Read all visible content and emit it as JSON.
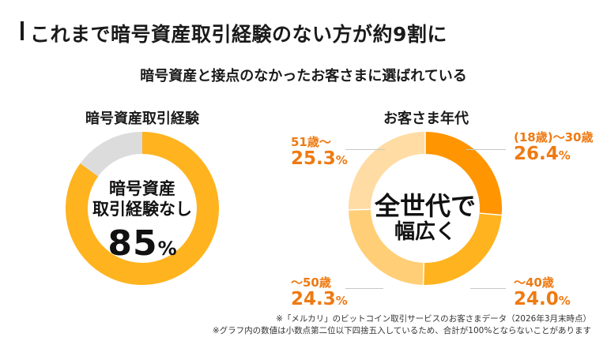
{
  "page": {
    "title": "これまで暗号資産取引経験のない方が約9割に",
    "subtitle": "暗号資産と接点のなかったお客さまに選ばれている"
  },
  "chart_data": [
    {
      "type": "pie",
      "title": "暗号資産取引経験",
      "center_label_line1": "暗号資産",
      "center_label_line2": "取引経験なし",
      "center_value": "85",
      "center_unit": "%",
      "slices": [
        {
          "label": "暗号資産取引経験なし",
          "value": 85,
          "color": "#ffb31f"
        },
        {
          "label": "",
          "value": 15,
          "color": "#dcdcdc"
        }
      ]
    },
    {
      "type": "pie",
      "title": "お客さま年代",
      "center_label_line1": "全世代で",
      "center_label_line2": "幅広く",
      "slices": [
        {
          "label": "(18歳)〜30歳",
          "value": 26.4,
          "display": "26.4",
          "color": "#ff9500"
        },
        {
          "label": "〜40歳",
          "value": 24.0,
          "display": "24.0",
          "color": "#ffb31f"
        },
        {
          "label": "〜50歳",
          "value": 24.3,
          "display": "24.3",
          "color": "#ffce76"
        },
        {
          "label": "51歳〜",
          "value": 25.3,
          "display": "25.3",
          "color": "#ffdca4"
        }
      ],
      "unit": "%"
    }
  ],
  "notes": {
    "line1": "※「メルカリ」のビットコイン取引サービスのお客さまデータ（2026年3月末時点）",
    "line2": "※グラフ内の数値は小数点第二位以下四捨五入しているため、合計が100%とならないことがあります"
  }
}
